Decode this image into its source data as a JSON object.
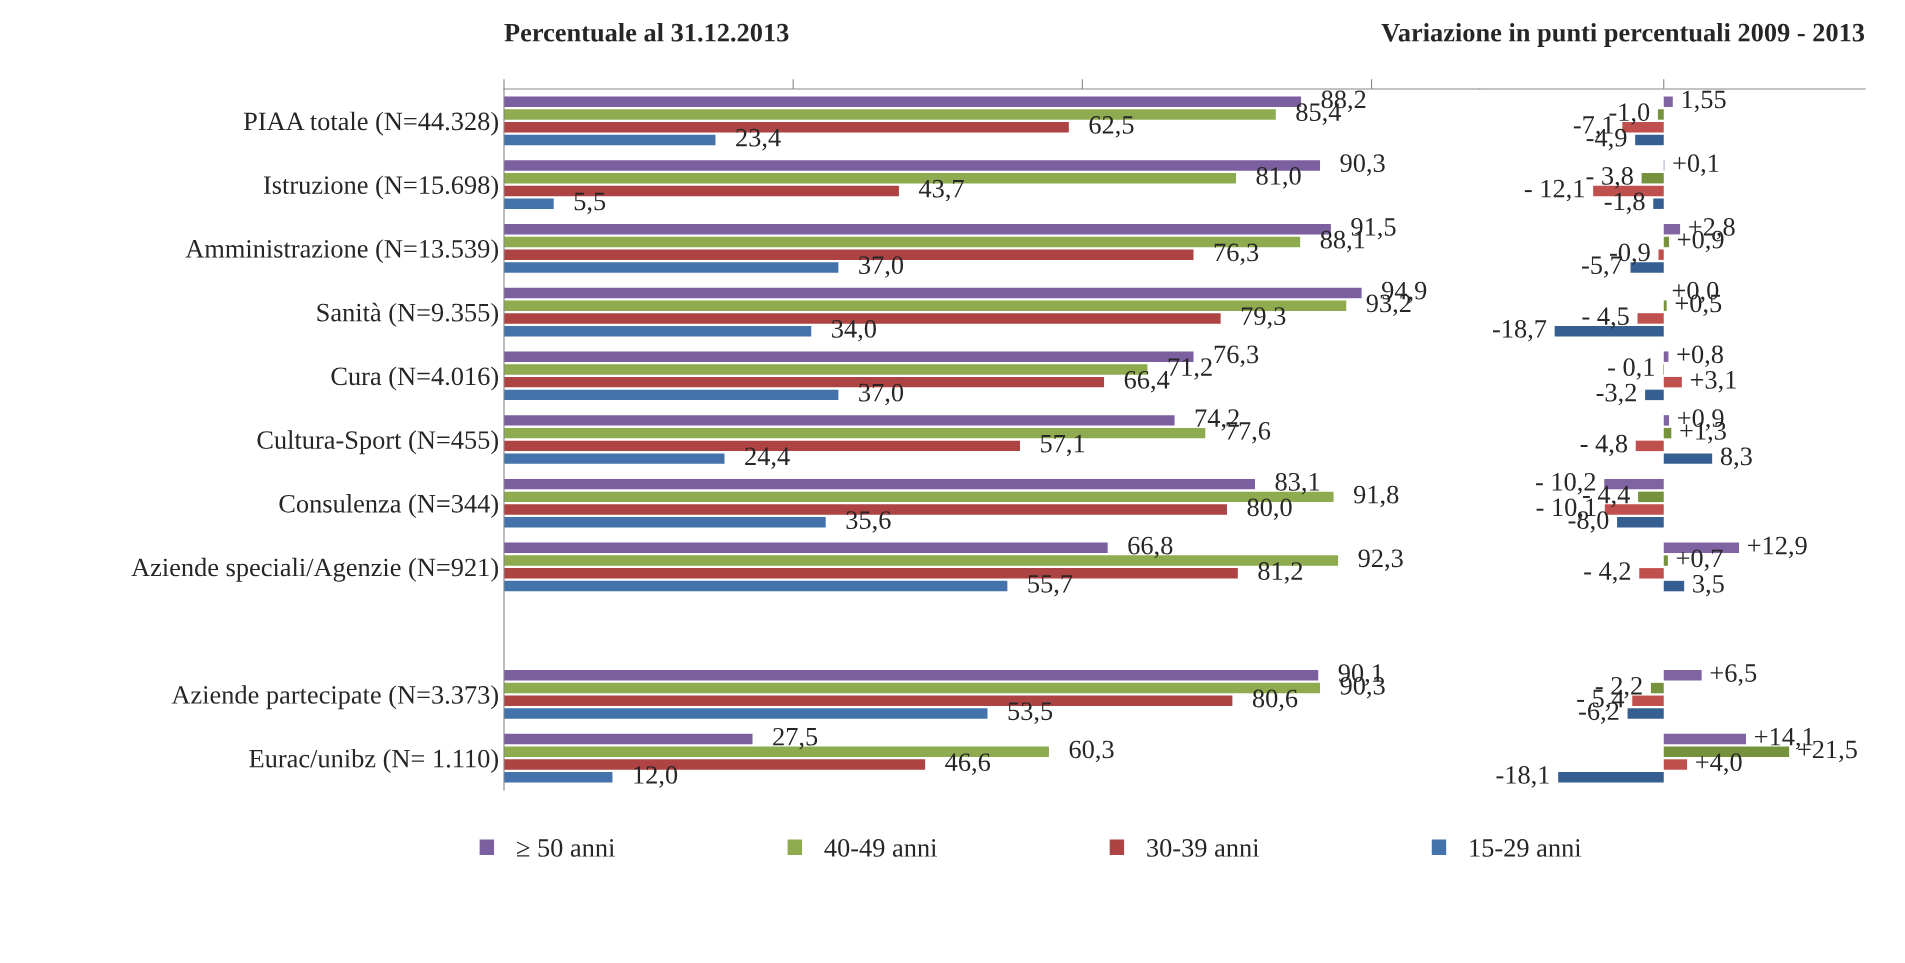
{
  "chart_data": [
    {
      "type": "bar",
      "orientation": "horizontal",
      "title": "Percentuale al 31.12.2013",
      "categories": [
        "PIAA totale (N=44.328)",
        "Istruzione (N=15.698)",
        "Amministrazione (N=13.539)",
        "Sanità (N=9.355)",
        "Cura (N=4.016)",
        "Cultura-Sport (N=455)",
        "Consulenza (N=344)",
        "Aziende speciali/Agenzie (N=921)",
        null,
        "Aziende partecipate (N=3.373)",
        "Eurac/unibz (N= 1.110)"
      ],
      "series": [
        {
          "name": "≥ 50 anni",
          "color": "#7b5f9e",
          "values": [
            88.2,
            90.3,
            91.5,
            94.9,
            76.3,
            74.2,
            83.1,
            66.8,
            null,
            90.1,
            27.5
          ],
          "value_labels": [
            "88,2",
            "90,3",
            "91,5",
            "94,9",
            "76,3",
            "74,2",
            "83,1",
            "66,8",
            null,
            "90,1",
            "27,5"
          ]
        },
        {
          "name": "40-49 anni",
          "color": "#8eab4f",
          "values": [
            85.4,
            81.0,
            88.1,
            93.2,
            71.2,
            77.6,
            91.8,
            92.3,
            null,
            90.3,
            60.3
          ],
          "value_labels": [
            "85,4",
            "81,0",
            "88,1",
            "93,2",
            "71,2",
            "77,6",
            "91,8",
            "92,3",
            null,
            "90,3",
            "60,3"
          ]
        },
        {
          "name": "30-39 anni",
          "color": "#ad4342",
          "values": [
            62.5,
            43.7,
            76.3,
            79.3,
            66.4,
            57.1,
            80.0,
            81.2,
            null,
            80.6,
            46.6
          ],
          "value_labels": [
            "62,5",
            "43,7",
            "76,3",
            "79,3",
            "66,4",
            "57,1",
            "80,0",
            "81,2",
            null,
            "80,6",
            "46,6"
          ]
        },
        {
          "name": "15-29 anni",
          "color": "#4473ab",
          "values": [
            23.4,
            5.5,
            37.0,
            34.0,
            37.0,
            24.4,
            35.6,
            55.7,
            null,
            53.5,
            12.0
          ],
          "value_labels": [
            "23,4",
            "5,5",
            "37,0",
            "34,0",
            "37,0",
            "24,4",
            "35,6",
            "55,7",
            null,
            "53,5",
            "12,0"
          ]
        }
      ],
      "xlim": [
        0,
        108
      ],
      "xticks": [
        {
          "value": 0,
          "label": null
        },
        {
          "value": 32,
          "label": null
        },
        {
          "value": 64,
          "label": null
        },
        {
          "value": 96,
          "label": null
        }
      ],
      "tick_labels": "y",
      "grid": false,
      "legend": "bottom"
    },
    {
      "type": "bar",
      "orientation": "horizontal",
      "title": "Variazione in punti percentuali 2009 - 2013",
      "series": [
        {
          "color": "#8064a2",
          "values": [
            1.55,
            0.1,
            2.8,
            0.0,
            0.8,
            0.9,
            -10.2,
            12.9,
            null,
            6.5,
            14.1
          ],
          "value_labels": [
            "1,55",
            "+0,1",
            "+2,8",
            "+0,0",
            "+0,8",
            "+0,9",
            "- 10,2",
            "+12,9",
            null,
            "+6,5",
            "+14,1"
          ]
        },
        {
          "color": "#76923c",
          "values": [
            -1.0,
            -3.8,
            0.9,
            0.5,
            -0.1,
            1.3,
            -4.4,
            0.7,
            null,
            -2.2,
            21.5
          ],
          "value_labels": [
            "-1,0",
            "- 3,8",
            "+0,9",
            "+0,5",
            "- 0,1",
            "+1,3",
            "- 4,4",
            "+0,7",
            null,
            "- 2,2",
            "+21,5"
          ]
        },
        {
          "color": "#c0504d",
          "values": [
            -7.1,
            -12.1,
            -0.9,
            -4.5,
            3.1,
            -4.8,
            -10.1,
            -4.2,
            null,
            -5.4,
            4.0
          ],
          "value_labels": [
            "-7,1",
            "- 12,1",
            "-0,9",
            "- 4,5",
            "+3,1",
            "- 4,8",
            "- 10,1",
            "- 4,2",
            null,
            "- 5,4",
            "+4,0"
          ]
        },
        {
          "color": "#365f91",
          "values": [
            -4.9,
            -1.8,
            -5.7,
            -18.7,
            -3.2,
            8.3,
            -8.0,
            3.5,
            null,
            -6.2,
            -18.1
          ],
          "value_labels": [
            "-4,9",
            "-1,8",
            "-5,7",
            "-18,7",
            "-3,2",
            "8,3",
            "-8,0",
            "3,5",
            null,
            "-6,2",
            "-18,1"
          ]
        }
      ],
      "xlim": [
        -31.5,
        34.5
      ],
      "xticks": [
        {
          "value": 0,
          "label": null
        }
      ],
      "tick_labels": false,
      "grid": false
    }
  ]
}
